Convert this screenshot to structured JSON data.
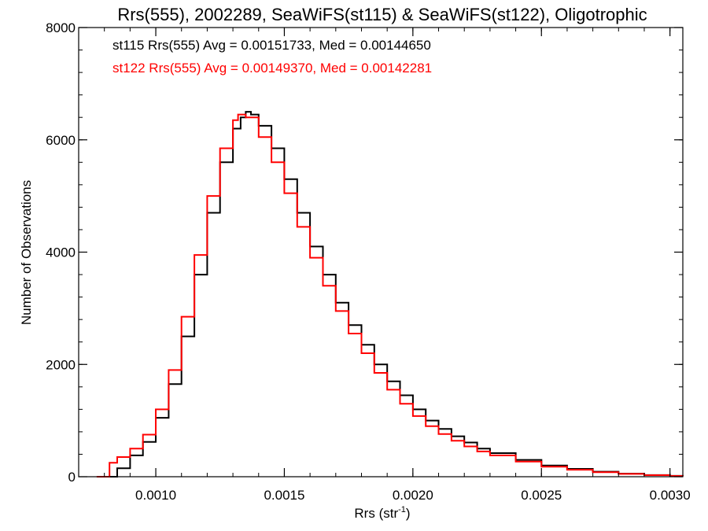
{
  "chart_data": {
    "type": "line",
    "step": true,
    "title": "Rrs(555), 2002289, SeaWiFS(st115) & SeaWiFS(st122), Oligotrophic",
    "xlabel_base": "Rrs (str",
    "xlabel_sup": "-1",
    "xlabel_tail": ")",
    "ylabel": "Number of Observations",
    "xlim": [
      0.0007,
      0.00305
    ],
    "ylim": [
      0,
      8000
    ],
    "x_ticks": [
      0.001,
      0.0015,
      0.002,
      0.0025,
      0.003
    ],
    "x_tick_labels": [
      "0.0010",
      "0.0015",
      "0.0020",
      "0.0025",
      "0.0030"
    ],
    "y_ticks": [
      0,
      2000,
      4000,
      6000,
      8000
    ],
    "y_tick_labels": [
      "0",
      "2000",
      "4000",
      "6000",
      "8000"
    ],
    "grid": false,
    "legend_position": "top-left",
    "series": [
      {
        "name": "st115",
        "label": "st115 Rrs(555) Avg = 0.00151733, Med = 0.00144650",
        "color": "#000000",
        "points": [
          [
            0.0008,
            0
          ],
          [
            0.00083,
            0
          ],
          [
            0.00085,
            150
          ],
          [
            0.0009,
            380
          ],
          [
            0.00095,
            620
          ],
          [
            0.001,
            1050
          ],
          [
            0.00105,
            1650
          ],
          [
            0.0011,
            2500
          ],
          [
            0.00115,
            3600
          ],
          [
            0.0012,
            4700
          ],
          [
            0.00125,
            5600
          ],
          [
            0.0013,
            6200
          ],
          [
            0.00133,
            6400
          ],
          [
            0.00135,
            6500
          ],
          [
            0.00137,
            6450
          ],
          [
            0.0014,
            6250
          ],
          [
            0.00145,
            5850
          ],
          [
            0.0015,
            5300
          ],
          [
            0.00155,
            4700
          ],
          [
            0.0016,
            4100
          ],
          [
            0.00165,
            3600
          ],
          [
            0.0017,
            3100
          ],
          [
            0.00175,
            2700
          ],
          [
            0.0018,
            2350
          ],
          [
            0.00185,
            2000
          ],
          [
            0.0019,
            1700
          ],
          [
            0.00195,
            1450
          ],
          [
            0.002,
            1200
          ],
          [
            0.00205,
            1000
          ],
          [
            0.0021,
            850
          ],
          [
            0.00215,
            720
          ],
          [
            0.0022,
            610
          ],
          [
            0.00225,
            500
          ],
          [
            0.0023,
            420
          ],
          [
            0.0024,
            300
          ],
          [
            0.0025,
            200
          ],
          [
            0.0026,
            140
          ],
          [
            0.0027,
            90
          ],
          [
            0.0028,
            55
          ],
          [
            0.0029,
            30
          ],
          [
            0.003,
            15
          ],
          [
            0.00305,
            10
          ]
        ]
      },
      {
        "name": "st122",
        "label": "st122 Rrs(555) Avg = 0.00149370, Med = 0.00142281",
        "color": "#ff0000",
        "points": [
          [
            0.00077,
            0
          ],
          [
            0.0008,
            0
          ],
          [
            0.00082,
            250
          ],
          [
            0.00085,
            350
          ],
          [
            0.0009,
            500
          ],
          [
            0.00095,
            750
          ],
          [
            0.001,
            1200
          ],
          [
            0.00105,
            1900
          ],
          [
            0.0011,
            2850
          ],
          [
            0.00115,
            3950
          ],
          [
            0.0012,
            5000
          ],
          [
            0.00125,
            5850
          ],
          [
            0.0013,
            6350
          ],
          [
            0.00132,
            6450
          ],
          [
            0.00135,
            6400
          ],
          [
            0.0014,
            6050
          ],
          [
            0.00145,
            5600
          ],
          [
            0.0015,
            5050
          ],
          [
            0.00155,
            4450
          ],
          [
            0.0016,
            3900
          ],
          [
            0.00165,
            3400
          ],
          [
            0.0017,
            2950
          ],
          [
            0.00175,
            2550
          ],
          [
            0.0018,
            2200
          ],
          [
            0.00185,
            1850
          ],
          [
            0.0019,
            1550
          ],
          [
            0.00195,
            1300
          ],
          [
            0.002,
            1080
          ],
          [
            0.00205,
            900
          ],
          [
            0.0021,
            760
          ],
          [
            0.00215,
            640
          ],
          [
            0.0022,
            540
          ],
          [
            0.00225,
            450
          ],
          [
            0.0023,
            380
          ],
          [
            0.0024,
            270
          ],
          [
            0.0025,
            180
          ],
          [
            0.0026,
            125
          ],
          [
            0.0027,
            80
          ],
          [
            0.0028,
            50
          ],
          [
            0.0029,
            28
          ],
          [
            0.003,
            14
          ],
          [
            0.00305,
            10
          ]
        ]
      }
    ]
  }
}
